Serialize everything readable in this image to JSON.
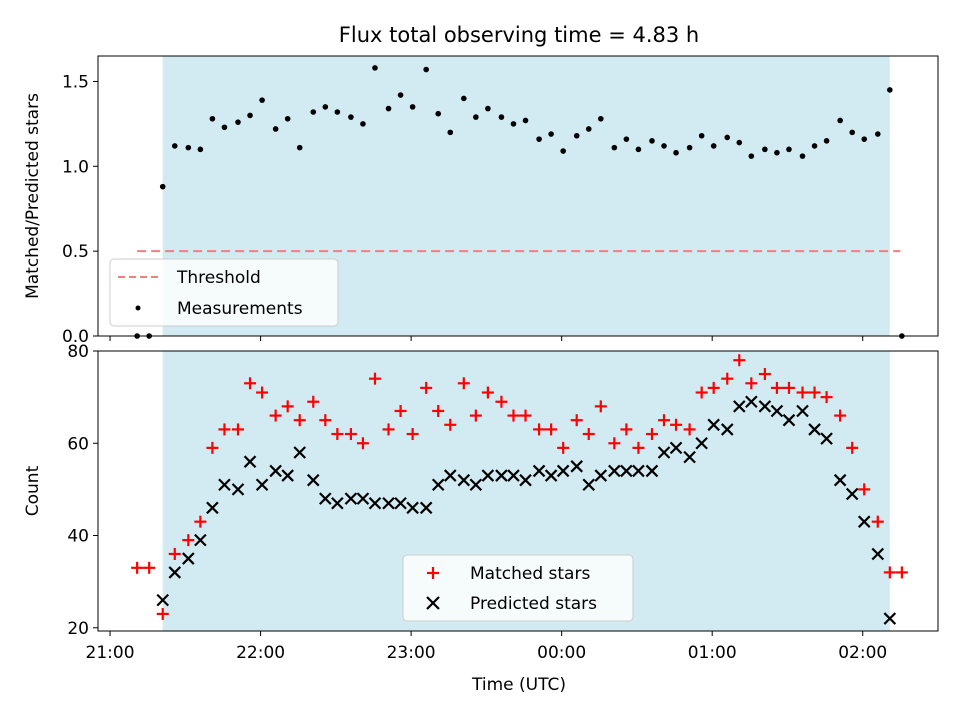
{
  "chart_data": {
    "title": "Flux total observing time = 4.83 h",
    "x_axis": {
      "label": "Time (UTC)",
      "ticks": [
        "21:00",
        "22:00",
        "23:00",
        "00:00",
        "01:00",
        "02:00"
      ],
      "tick_hours": [
        0,
        1,
        2,
        3,
        4,
        5
      ],
      "range_hours": [
        -0.08,
        5.5
      ]
    },
    "shaded_interval_hours": [
      0.35,
      5.18
    ],
    "shade_color": "#add8e6",
    "panels": [
      {
        "type": "scatter",
        "ylabel": "Matched/Predicted stars",
        "ylim": [
          0,
          1.65
        ],
        "yticks": [
          "0.0",
          "0.5",
          "1.0",
          "1.5"
        ],
        "ytick_values": [
          0,
          0.5,
          1.0,
          1.5
        ],
        "legend_position": "lower-left",
        "threshold": {
          "name": "Threshold",
          "value": 0.5,
          "x_range_hours": [
            0.18,
            5.25
          ],
          "color": "#f08080"
        },
        "series": [
          {
            "name": "Measurements",
            "marker": "dot",
            "color": "#000000",
            "x": [
              0.18,
              0.26,
              0.35,
              0.43,
              0.52,
              0.6,
              0.68,
              0.76,
              0.85,
              0.93,
              1.01,
              1.1,
              1.18,
              1.26,
              1.35,
              1.43,
              1.51,
              1.6,
              1.68,
              1.76,
              1.85,
              1.93,
              2.01,
              2.1,
              2.18,
              2.26,
              2.35,
              2.43,
              2.51,
              2.6,
              2.68,
              2.76,
              2.85,
              2.93,
              3.01,
              3.1,
              3.18,
              3.26,
              3.35,
              3.43,
              3.51,
              3.6,
              3.68,
              3.76,
              3.85,
              3.93,
              4.01,
              4.1,
              4.18,
              4.26,
              4.35,
              4.43,
              4.51,
              4.6,
              4.68,
              4.76,
              4.85,
              4.93,
              5.01,
              5.1,
              5.18,
              5.26
            ],
            "y": [
              0,
              0,
              0.88,
              1.12,
              1.11,
              1.1,
              1.28,
              1.23,
              1.26,
              1.3,
              1.39,
              1.22,
              1.28,
              1.11,
              1.32,
              1.35,
              1.32,
              1.29,
              1.25,
              1.58,
              1.34,
              1.42,
              1.35,
              1.57,
              1.31,
              1.2,
              1.4,
              1.29,
              1.34,
              1.29,
              1.25,
              1.27,
              1.16,
              1.19,
              1.09,
              1.18,
              1.22,
              1.28,
              1.11,
              1.16,
              1.1,
              1.15,
              1.12,
              1.08,
              1.11,
              1.18,
              1.12,
              1.17,
              1.14,
              1.06,
              1.1,
              1.08,
              1.1,
              1.06,
              1.12,
              1.15,
              1.27,
              1.2,
              1.16,
              1.19,
              1.45,
              0
            ]
          }
        ]
      },
      {
        "type": "scatter",
        "ylabel": "Count",
        "ylim": [
          19.3,
          80
        ],
        "yticks": [
          "20",
          "40",
          "60",
          "80"
        ],
        "ytick_values": [
          20,
          40,
          60,
          80
        ],
        "legend_position": "lower-center",
        "series": [
          {
            "name": "Matched stars",
            "marker": "plus",
            "color": "#ff0000",
            "x": [
              0.18,
              0.26,
              0.35,
              0.43,
              0.52,
              0.6,
              0.68,
              0.76,
              0.85,
              0.93,
              1.01,
              1.1,
              1.18,
              1.26,
              1.35,
              1.43,
              1.51,
              1.6,
              1.68,
              1.76,
              1.85,
              1.93,
              2.01,
              2.1,
              2.18,
              2.26,
              2.35,
              2.43,
              2.51,
              2.6,
              2.68,
              2.76,
              2.85,
              2.93,
              3.01,
              3.1,
              3.18,
              3.26,
              3.35,
              3.43,
              3.51,
              3.6,
              3.68,
              3.76,
              3.85,
              3.93,
              4.01,
              4.1,
              4.18,
              4.26,
              4.35,
              4.43,
              4.51,
              4.6,
              4.68,
              4.76,
              4.85,
              4.93,
              5.01,
              5.1,
              5.18,
              5.26
            ],
            "y": [
              33,
              33,
              23,
              36,
              39,
              43,
              59,
              63,
              63,
              73,
              71,
              66,
              68,
              65,
              69,
              65,
              62,
              62,
              60,
              74,
              63,
              67,
              62,
              72,
              67,
              64,
              73,
              66,
              71,
              69,
              66,
              66,
              63,
              63,
              59,
              65,
              62,
              68,
              60,
              63,
              59,
              62,
              65,
              64,
              63,
              71,
              72,
              74,
              78,
              73,
              75,
              72,
              72,
              71,
              71,
              70,
              66,
              59,
              50,
              43,
              32,
              32
            ]
          },
          {
            "name": "Predicted stars",
            "marker": "x",
            "color": "#000000",
            "x": [
              0.35,
              0.43,
              0.52,
              0.6,
              0.68,
              0.76,
              0.85,
              0.93,
              1.01,
              1.1,
              1.18,
              1.26,
              1.35,
              1.43,
              1.51,
              1.6,
              1.68,
              1.76,
              1.85,
              1.93,
              2.01,
              2.1,
              2.18,
              2.26,
              2.35,
              2.43,
              2.51,
              2.6,
              2.68,
              2.76,
              2.85,
              2.93,
              3.01,
              3.1,
              3.18,
              3.26,
              3.35,
              3.43,
              3.51,
              3.6,
              3.68,
              3.76,
              3.85,
              3.93,
              4.01,
              4.1,
              4.18,
              4.26,
              4.35,
              4.43,
              4.51,
              4.6,
              4.68,
              4.76,
              4.85,
              4.93,
              5.01,
              5.1,
              5.18
            ],
            "y": [
              26,
              32,
              35,
              39,
              46,
              51,
              50,
              56,
              51,
              54,
              53,
              58,
              52,
              48,
              47,
              48,
              48,
              47,
              47,
              47,
              46,
              46,
              51,
              53,
              52,
              51,
              53,
              53,
              53,
              52,
              54,
              53,
              54,
              55,
              51,
              53,
              54,
              54,
              54,
              54,
              58,
              59,
              57,
              60,
              64,
              63,
              68,
              69,
              68,
              67,
              65,
              67,
              63,
              61,
              52,
              49,
              43,
              36,
              22
            ]
          }
        ]
      }
    ]
  }
}
